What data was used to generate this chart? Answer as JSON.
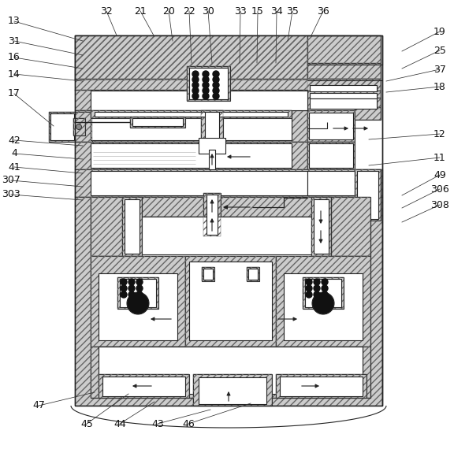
{
  "bg_color": "#ffffff",
  "hatch_color": "#555555",
  "line_color": "#222222",
  "label_fontsize": 9,
  "labels_left": [
    [
      "13",
      18,
      543,
      105,
      518
    ],
    [
      "31",
      18,
      518,
      105,
      500
    ],
    [
      "16",
      18,
      497,
      105,
      483
    ],
    [
      "14",
      18,
      476,
      105,
      467
    ],
    [
      "17",
      18,
      451,
      68,
      410
    ],
    [
      "42",
      18,
      392,
      105,
      385
    ],
    [
      "4",
      18,
      375,
      105,
      368
    ],
    [
      "41",
      18,
      358,
      105,
      350
    ],
    [
      "307",
      14,
      341,
      105,
      333
    ],
    [
      "303",
      14,
      323,
      105,
      316
    ],
    [
      "47",
      49,
      55,
      120,
      72
    ]
  ],
  "labels_top": [
    [
      "32",
      135,
      556,
      148,
      525
    ],
    [
      "21",
      178,
      556,
      195,
      525
    ],
    [
      "20",
      214,
      556,
      219,
      518
    ],
    [
      "22",
      240,
      556,
      243,
      490
    ],
    [
      "30",
      264,
      556,
      269,
      490
    ],
    [
      "33",
      305,
      556,
      304,
      490
    ],
    [
      "15",
      327,
      556,
      326,
      490
    ],
    [
      "34",
      351,
      556,
      350,
      490
    ],
    [
      "35",
      371,
      556,
      365,
      518
    ],
    [
      "36",
      410,
      556,
      395,
      525
    ]
  ],
  "labels_right": [
    [
      "19",
      558,
      530,
      510,
      505
    ],
    [
      "25",
      558,
      506,
      510,
      483
    ],
    [
      "37",
      558,
      482,
      490,
      467
    ],
    [
      "18",
      558,
      460,
      490,
      453
    ],
    [
      "12",
      558,
      400,
      468,
      393
    ],
    [
      "11",
      558,
      370,
      468,
      360
    ],
    [
      "49",
      558,
      348,
      510,
      322
    ],
    [
      "306",
      558,
      330,
      510,
      306
    ],
    [
      "308",
      558,
      310,
      510,
      288
    ]
  ],
  "labels_bottom": [
    [
      "45",
      110,
      32,
      163,
      70
    ],
    [
      "44",
      152,
      32,
      196,
      60
    ],
    [
      "43",
      200,
      32,
      267,
      50
    ],
    [
      "46",
      239,
      32,
      318,
      58
    ]
  ]
}
